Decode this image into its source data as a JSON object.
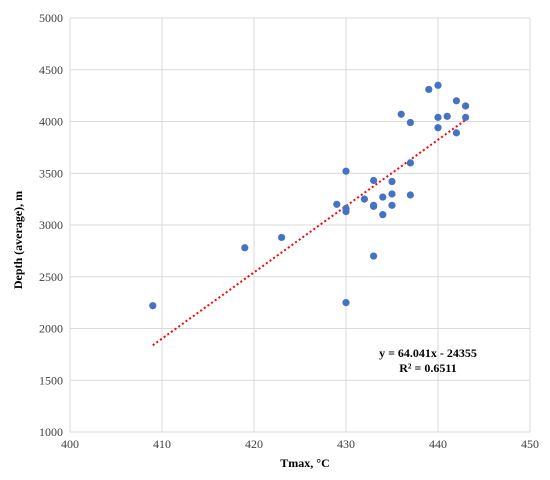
{
  "chart_data": {
    "type": "scatter",
    "xlabel": "Tmax,  °C",
    "ylabel": "Depth (average), m",
    "xlim": [
      400,
      450
    ],
    "ylim": [
      1000,
      5000
    ],
    "xticks": [
      "400",
      "410",
      "420",
      "430",
      "440",
      "450"
    ],
    "yticks": [
      "1000",
      "1500",
      "2000",
      "2500",
      "3000",
      "3500",
      "4000",
      "4500",
      "5000"
    ],
    "grid": true,
    "series": [
      {
        "marker": "circle",
        "color": "#4472C4",
        "points": [
          [
            409,
            2220
          ],
          [
            419,
            2780
          ],
          [
            423,
            2880
          ],
          [
            429,
            3200
          ],
          [
            430,
            3520
          ],
          [
            430,
            3160
          ],
          [
            430,
            3130
          ],
          [
            430,
            2250
          ],
          [
            432,
            3250
          ],
          [
            433,
            3430
          ],
          [
            433,
            3190
          ],
          [
            433,
            3180
          ],
          [
            433,
            2700
          ],
          [
            434,
            3270
          ],
          [
            434,
            3100
          ],
          [
            435,
            3420
          ],
          [
            435,
            3300
          ],
          [
            435,
            3190
          ],
          [
            436,
            4070
          ],
          [
            437,
            3990
          ],
          [
            437,
            3600
          ],
          [
            437,
            3290
          ],
          [
            439,
            4310
          ],
          [
            440,
            4350
          ],
          [
            440,
            4040
          ],
          [
            440,
            3940
          ],
          [
            441,
            4050
          ],
          [
            442,
            4200
          ],
          [
            442,
            3890
          ],
          [
            443,
            4150
          ],
          [
            443,
            4040
          ]
        ]
      }
    ],
    "trendline": {
      "type": "linear",
      "slope": 64.041,
      "intercept": -24355,
      "x_range": [
        409,
        443
      ],
      "color": "#FF0000",
      "style": "dotted"
    },
    "annotations": {
      "equation": "y = 64.041x - 24355",
      "r2": "R² = 0.6511"
    }
  }
}
